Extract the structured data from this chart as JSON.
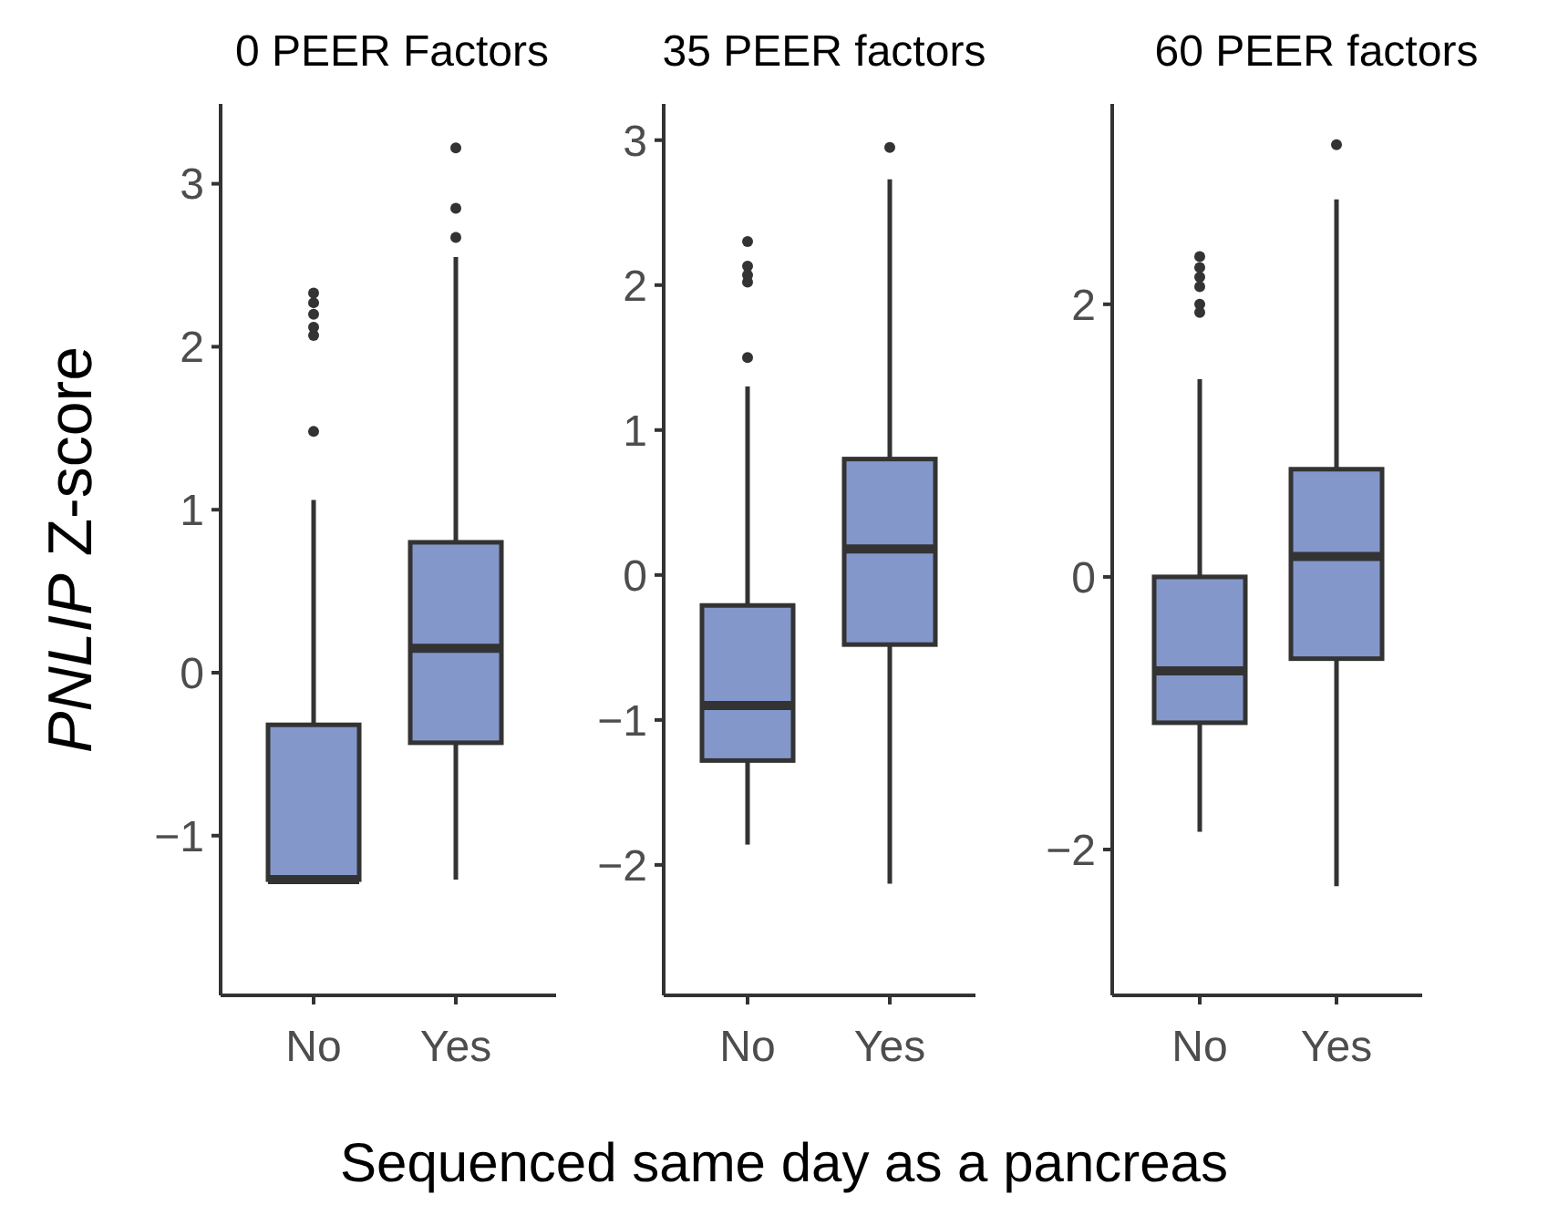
{
  "chart_data": [
    {
      "type": "box",
      "title": "0 PEER Factors",
      "ylabel": "PNLIP Z-score",
      "categories": [
        "No",
        "Yes"
      ],
      "color": "#8497cb",
      "ylim": [
        -1.98,
        3.49
      ],
      "yticks": [
        -1,
        0,
        1,
        2,
        3
      ],
      "boxes": [
        {
          "low": -1.27,
          "q1": -1.27,
          "median": -1.27,
          "q3": -0.32,
          "high": 1.06,
          "outliers": [
            1.48,
            2.07,
            2.12,
            2.2,
            2.27,
            2.33
          ]
        },
        {
          "low": -1.27,
          "q1": -0.43,
          "median": 0.15,
          "q3": 0.8,
          "high": 2.55,
          "outliers": [
            2.67,
            2.85,
            3.22
          ]
        }
      ]
    },
    {
      "type": "box",
      "title": "35 PEER factors",
      "xlabel": "Sequenced same day as a pancreas",
      "categories": [
        "No",
        "Yes"
      ],
      "color": "#8497cb",
      "ylim": [
        -2.9,
        3.25
      ],
      "yticks": [
        -2,
        -1,
        0,
        1,
        2,
        3
      ],
      "boxes": [
        {
          "low": -1.86,
          "q1": -1.28,
          "median": -0.9,
          "q3": -0.21,
          "high": 1.3,
          "outliers": [
            1.5,
            2.02,
            2.07,
            2.13,
            2.3
          ]
        },
        {
          "low": -2.13,
          "q1": -0.48,
          "median": 0.18,
          "q3": 0.8,
          "high": 2.73,
          "outliers": [
            2.95
          ]
        }
      ]
    },
    {
      "type": "box",
      "title": "60 PEER factors",
      "categories": [
        "No",
        "Yes"
      ],
      "color": "#8497cb",
      "ylim": [
        -3.07,
        3.47
      ],
      "yticks": [
        -2,
        0,
        2
      ],
      "boxes": [
        {
          "low": -1.87,
          "q1": -1.07,
          "median": -0.69,
          "q3": 0,
          "high": 1.45,
          "outliers": [
            1.94,
            2.0,
            2.13,
            2.2,
            2.27,
            2.35
          ]
        },
        {
          "low": -2.27,
          "q1": -0.6,
          "median": 0.15,
          "q3": 0.79,
          "high": 2.77,
          "outliers": [
            3.17
          ]
        }
      ]
    }
  ]
}
